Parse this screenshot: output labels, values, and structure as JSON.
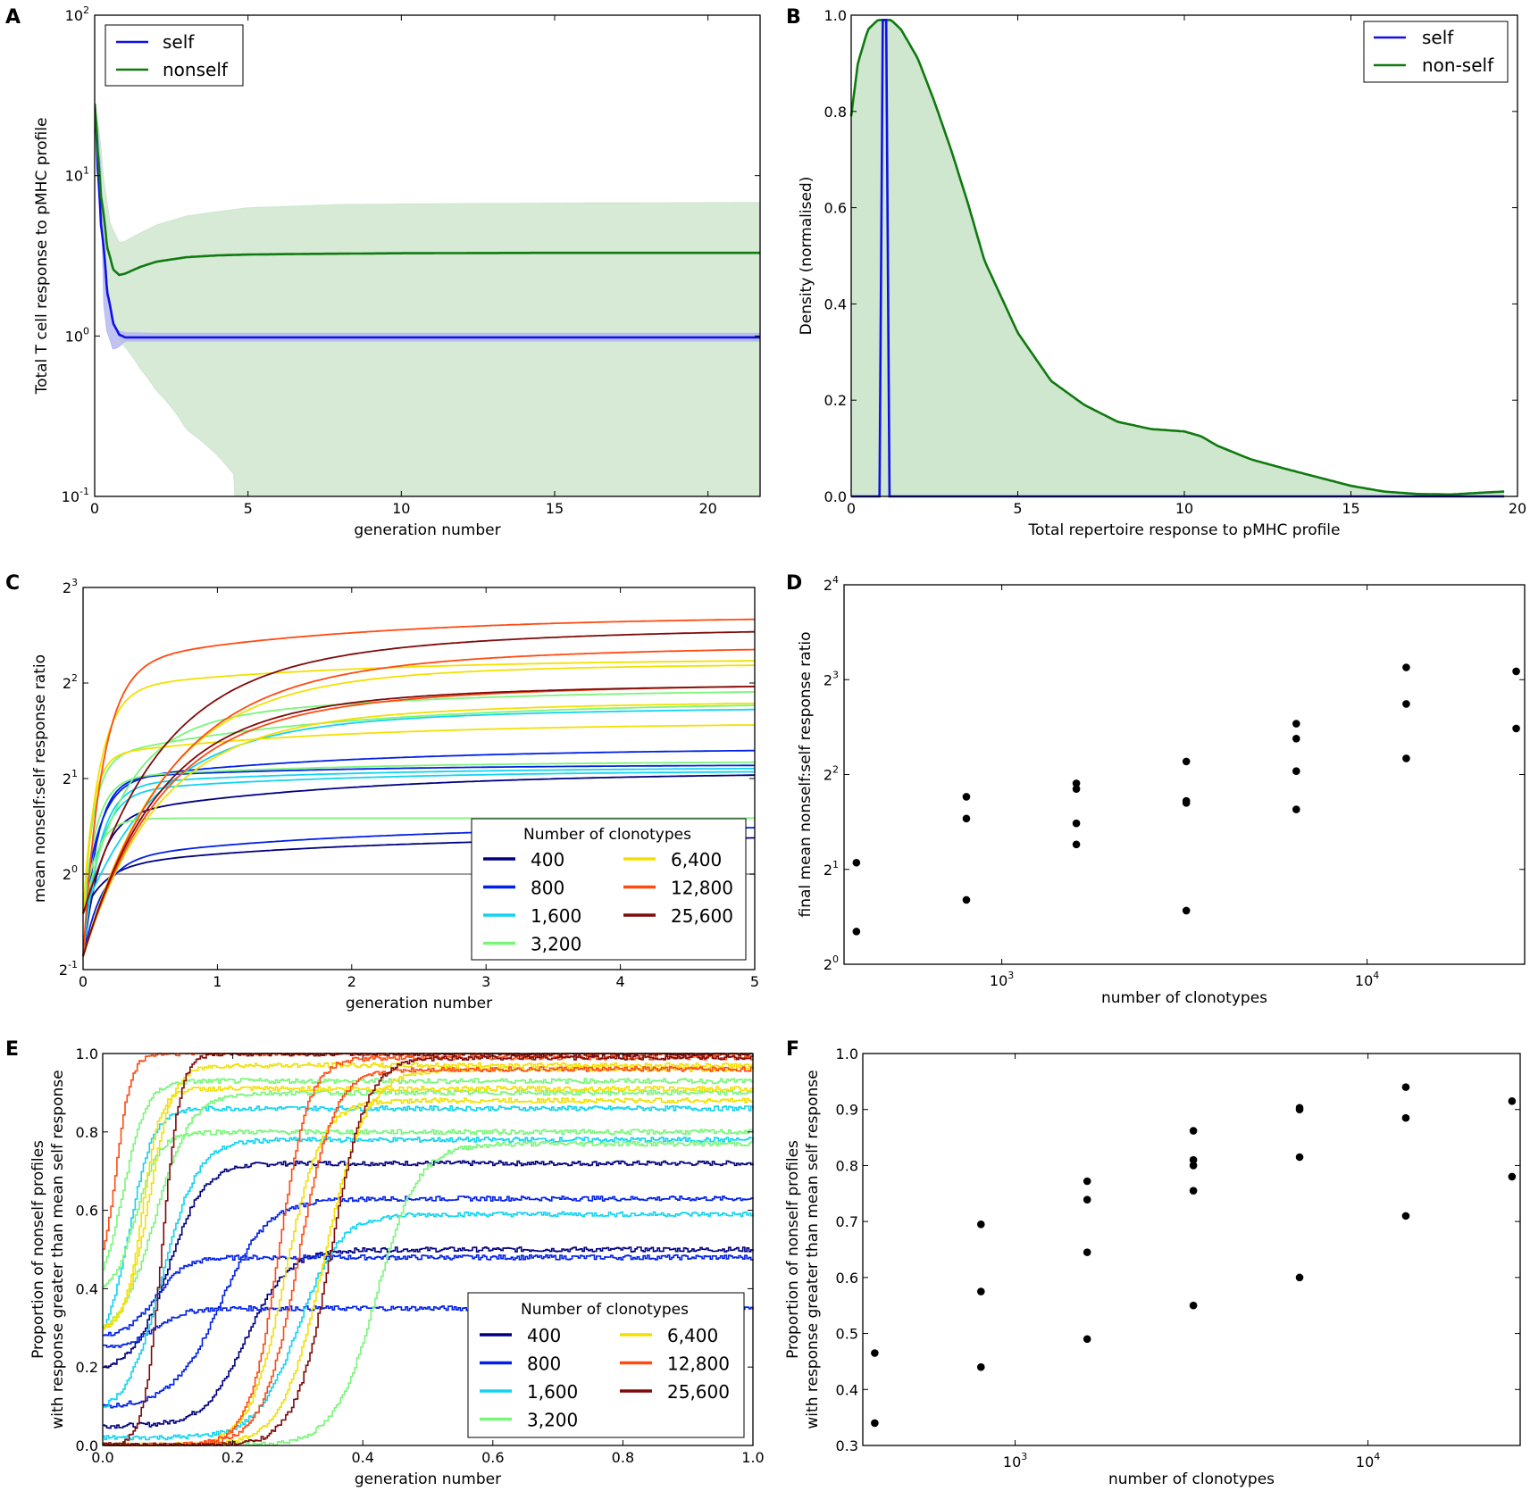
{
  "colors": {
    "self": "#1010e6",
    "nonself": "#0f7a0f",
    "nonself_band": "#cfe6cf",
    "self_band": "#b6b9f0",
    "c400": "#00007f",
    "c800": "#0020e6",
    "c1600": "#12d3f0",
    "c3200": "#7af57a",
    "c6400": "#f2e000",
    "c12800": "#ff4a10",
    "c25600": "#7f0a0a",
    "reference": "#808080",
    "point": "#000000"
  },
  "chart_data": [
    {
      "panel": "A",
      "type": "line",
      "yscale": "log10",
      "xlabel": "generation number",
      "ylabel": "Total T cell response to pMHC profile",
      "xlim": [
        0,
        21.7
      ],
      "ylim": [
        0.1,
        100
      ],
      "xticks": [
        0,
        5,
        10,
        15,
        20
      ],
      "yticks": [
        {
          "value": 0.1,
          "base": "10",
          "exp": "-1"
        },
        {
          "value": 1,
          "base": "10",
          "exp": "0"
        },
        {
          "value": 10,
          "base": "10",
          "exp": "1"
        },
        {
          "value": 100,
          "base": "10",
          "exp": "2"
        }
      ],
      "legend": {
        "position": "top-left",
        "entries": [
          "self",
          "nonself"
        ]
      },
      "series": [
        {
          "name": "self",
          "color_key": "self",
          "x": [
            0,
            0.1,
            0.2,
            0.4,
            0.6,
            0.8,
            1.0,
            1.5,
            2,
            3,
            5,
            10,
            15,
            21.7
          ],
          "y": [
            28,
            11,
            5,
            1.9,
            1.2,
            1.02,
            0.98,
            0.98,
            0.98,
            0.98,
            0.98,
            0.98,
            0.98,
            0.98
          ]
        },
        {
          "name": "nonself",
          "color_key": "nonself",
          "x": [
            0,
            0.1,
            0.2,
            0.4,
            0.6,
            0.8,
            1.0,
            1.5,
            2,
            3,
            4,
            5,
            7,
            10,
            15,
            21.7
          ],
          "y": [
            28,
            14,
            7.5,
            3.6,
            2.6,
            2.4,
            2.45,
            2.7,
            2.9,
            3.1,
            3.18,
            3.22,
            3.25,
            3.28,
            3.3,
            3.3
          ]
        }
      ],
      "bands": [
        {
          "name": "nonself",
          "color_key": "nonself_band",
          "x": [
            0,
            0.3,
            0.5,
            0.8,
            1.0,
            1.5,
            2,
            3,
            5,
            8,
            12,
            16,
            21.7
          ],
          "upper": [
            28,
            9,
            5,
            3.8,
            3.9,
            4.4,
            4.9,
            5.6,
            6.3,
            6.6,
            6.7,
            6.75,
            6.8
          ],
          "lower": [
            28,
            3,
            1.4,
            0.95,
            0.85,
            0.62,
            0.46,
            0.26,
            0.1,
            0.1,
            0.1,
            0.1,
            0.1
          ],
          "lower_end_x": 4.6
        },
        {
          "name": "self",
          "color_key": "self_band",
          "x": [
            0,
            0.3,
            0.6,
            0.8,
            1.0,
            2,
            5,
            21.7
          ],
          "upper": [
            28,
            2.5,
            1.15,
            1.07,
            1.05,
            1.04,
            1.04,
            1.04
          ],
          "lower": [
            28,
            1.2,
            0.82,
            0.86,
            0.93,
            0.93,
            0.93,
            0.93
          ]
        }
      ]
    },
    {
      "panel": "B",
      "type": "area",
      "xlabel": "Total repertoire response to pMHC profile",
      "ylabel": "Density (normalised)",
      "xlim": [
        0,
        20
      ],
      "ylim": [
        0,
        1.0
      ],
      "xticks": [
        0,
        5,
        10,
        15,
        20
      ],
      "yticks": [
        0.0,
        0.2,
        0.4,
        0.6,
        0.8,
        1.0
      ],
      "legend": {
        "position": "top-right",
        "entries": [
          "self",
          "non-self"
        ]
      },
      "series": [
        {
          "name": "non-self",
          "color_key": "nonself",
          "fill": true,
          "x": [
            0,
            0.2,
            0.5,
            0.8,
            1.0,
            1.2,
            1.5,
            2,
            2.5,
            3,
            3.5,
            4,
            5,
            6,
            7,
            8,
            9,
            10,
            10.5,
            11,
            12,
            13,
            14,
            15,
            16,
            17,
            18,
            19,
            19.6
          ],
          "y": [
            0.79,
            0.9,
            0.97,
            0.99,
            0.99,
            0.99,
            0.97,
            0.91,
            0.82,
            0.72,
            0.61,
            0.49,
            0.34,
            0.24,
            0.19,
            0.155,
            0.14,
            0.135,
            0.125,
            0.105,
            0.077,
            0.058,
            0.04,
            0.022,
            0.01,
            0.005,
            0.004,
            0.008,
            0.01
          ]
        },
        {
          "name": "self",
          "color_key": "self",
          "x": [
            0,
            0.85,
            0.95,
            1.05,
            1.15,
            19.6
          ],
          "y": [
            0,
            0,
            0.99,
            0.99,
            0,
            0
          ]
        }
      ]
    },
    {
      "panel": "C",
      "type": "line",
      "yscale": "log2",
      "xlabel": "generation number",
      "ylabel": "mean nonself:self response ratio",
      "xlim": [
        0,
        5
      ],
      "ylim": [
        0.5,
        8
      ],
      "xticks": [
        0,
        1,
        2,
        3,
        4,
        5
      ],
      "yticks": [
        {
          "value": 0.5,
          "base": "2",
          "exp": "-1"
        },
        {
          "value": 1,
          "base": "2",
          "exp": "0"
        },
        {
          "value": 2,
          "base": "2",
          "exp": "1"
        },
        {
          "value": 4,
          "base": "2",
          "exp": "2"
        },
        {
          "value": 8,
          "base": "2",
          "exp": "3"
        }
      ],
      "reference_y": 1,
      "legend": {
        "title": "Number of clonotypes",
        "position": "lower-right",
        "columns": [
          [
            "400",
            "800",
            "1,600",
            "3,200"
          ],
          [
            "6,400",
            "12,800",
            "25,600"
          ]
        ]
      },
      "series": [
        {
          "name": "400",
          "color_key": "c400",
          "start": 0.55,
          "plateau": 1.5,
          "tau": 0.12,
          "end": 2.05
        },
        {
          "name": "400",
          "color_key": "c400",
          "start": 0.75,
          "plateau": 1.05,
          "tau": 0.15,
          "end": 1.3
        },
        {
          "name": "800",
          "color_key": "c800",
          "start": 0.75,
          "plateau": 1.95,
          "tau": 0.12,
          "end": 2.45
        },
        {
          "name": "800",
          "color_key": "c800",
          "start": 0.55,
          "plateau": 1.1,
          "tau": 0.14,
          "end": 1.4
        },
        {
          "name": "800",
          "color_key": "c800",
          "start": 0.55,
          "plateau": 2.0,
          "tau": 0.1,
          "end": 2.2
        },
        {
          "name": "1,600",
          "color_key": "c1600",
          "start": 0.75,
          "plateau": 2.55,
          "tau": 0.5,
          "end": 3.3
        },
        {
          "name": "1,600",
          "color_key": "c1600",
          "start": 0.55,
          "plateau": 1.8,
          "tau": 0.12,
          "end": 2.1
        },
        {
          "name": "1,600",
          "color_key": "c1600",
          "start": 0.55,
          "plateau": 1.9,
          "tau": 0.12,
          "end": 2.15
        },
        {
          "name": "3,200",
          "color_key": "c3200",
          "start": 0.75,
          "plateau": 2.3,
          "tau": 0.08,
          "end": 3.4
        },
        {
          "name": "3,200",
          "color_key": "c3200",
          "start": 0.75,
          "plateau": 2.8,
          "tau": 0.3,
          "end": 3.75
        },
        {
          "name": "3,200",
          "color_key": "c3200",
          "start": 0.75,
          "plateau": 1.5,
          "tau": 0.1,
          "end": 1.5
        },
        {
          "name": "3,200",
          "color_key": "c3200",
          "start": 0.75,
          "plateau": 2.0,
          "tau": 0.1,
          "end": 2.25
        },
        {
          "name": "6,400",
          "color_key": "c6400",
          "start": 0.75,
          "plateau": 3.8,
          "tau": 0.12,
          "end": 4.7
        },
        {
          "name": "6,400",
          "color_key": "c6400",
          "start": 0.55,
          "plateau": 3.6,
          "tau": 0.55,
          "end": 4.55
        },
        {
          "name": "6,400",
          "color_key": "c6400",
          "start": 0.75,
          "plateau": 2.35,
          "tau": 0.07,
          "end": 2.95
        },
        {
          "name": "6,400",
          "color_key": "c6400",
          "start": 0.55,
          "plateau": 2.6,
          "tau": 0.5,
          "end": 3.45
        },
        {
          "name": "12,800",
          "color_key": "c12800",
          "start": 0.55,
          "plateau": 4.5,
          "tau": 0.14,
          "end": 6.35
        },
        {
          "name": "12,800",
          "color_key": "c12800",
          "start": 0.55,
          "plateau": 3.4,
          "tau": 0.55,
          "end": 5.1
        },
        {
          "name": "12,800",
          "color_key": "c12800",
          "start": 0.55,
          "plateau": 2.7,
          "tau": 0.5,
          "end": 3.9
        },
        {
          "name": "25,600",
          "color_key": "c25600",
          "start": 0.75,
          "plateau": 3.7,
          "tau": 0.5,
          "end": 5.8
        },
        {
          "name": "25,600",
          "color_key": "c25600",
          "start": 0.55,
          "plateau": 2.9,
          "tau": 0.5,
          "end": 3.9
        }
      ]
    },
    {
      "panel": "D",
      "type": "scatter",
      "xscale": "log10",
      "yscale": "log2",
      "xlabel": "number of clonotypes",
      "ylabel": "final mean nonself:self response ratio",
      "xlim": [
        370,
        27000
      ],
      "ylim": [
        1,
        16
      ],
      "xticks": [
        {
          "value": 1000,
          "base": "10",
          "exp": "3"
        },
        {
          "value": 10000,
          "base": "10",
          "exp": "4"
        }
      ],
      "yticks": [
        {
          "value": 1,
          "base": "2",
          "exp": "0"
        },
        {
          "value": 2,
          "base": "2",
          "exp": "1"
        },
        {
          "value": 4,
          "base": "2",
          "exp": "2"
        },
        {
          "value": 8,
          "base": "2",
          "exp": "3"
        },
        {
          "value": 16,
          "base": "2",
          "exp": "4"
        }
      ],
      "points": [
        [
          400,
          2.1
        ],
        [
          400,
          1.27
        ],
        [
          800,
          3.4
        ],
        [
          800,
          2.9
        ],
        [
          800,
          1.6
        ],
        [
          1600,
          3.75
        ],
        [
          1600,
          3.6
        ],
        [
          1600,
          2.8
        ],
        [
          1600,
          2.4
        ],
        [
          3200,
          4.4
        ],
        [
          3200,
          3.3
        ],
        [
          3200,
          3.25
        ],
        [
          3200,
          1.48
        ],
        [
          6400,
          5.8
        ],
        [
          6400,
          5.2
        ],
        [
          6400,
          4.1
        ],
        [
          6400,
          3.1
        ],
        [
          12800,
          8.75
        ],
        [
          12800,
          6.7
        ],
        [
          12800,
          4.5
        ],
        [
          25600,
          8.5
        ],
        [
          25600,
          5.6
        ]
      ]
    },
    {
      "panel": "E",
      "type": "line",
      "xlabel": "generation number",
      "ylabel": "Proportion of nonself profiles\nwith response greater than mean self response",
      "xlim": [
        0,
        1.0
      ],
      "ylim": [
        0,
        1.0
      ],
      "xticks": [
        0.0,
        0.2,
        0.4,
        0.6,
        0.8,
        1.0
      ],
      "yticks": [
        0.0,
        0.2,
        0.4,
        0.6,
        0.8,
        1.0
      ],
      "legend": {
        "title": "Number of clonotypes",
        "position": "lower-right",
        "columns": [
          [
            "400",
            "800",
            "1,600",
            "3,200"
          ],
          [
            "6,400",
            "12,800",
            "25,600"
          ]
        ]
      },
      "series": [
        {
          "name": "400",
          "color_key": "c400",
          "x0": 0.0,
          "y0": 0.2,
          "t50": 0.1,
          "w": 0.06,
          "plateau": 0.72
        },
        {
          "name": "400",
          "color_key": "c400",
          "x0": 0.0,
          "y0": 0.05,
          "t50": 0.22,
          "w": 0.07,
          "plateau": 0.5
        },
        {
          "name": "800",
          "color_key": "c800",
          "x0": 0.0,
          "y0": 0.28,
          "t50": 0.08,
          "w": 0.05,
          "plateau": 0.48
        },
        {
          "name": "800",
          "color_key": "c800",
          "x0": 0.0,
          "y0": 0.1,
          "t50": 0.18,
          "w": 0.08,
          "plateau": 0.63
        },
        {
          "name": "800",
          "color_key": "c800",
          "x0": 0.0,
          "y0": 0.25,
          "t50": 0.08,
          "w": 0.05,
          "plateau": 0.35
        },
        {
          "name": "1,600",
          "color_key": "c1600",
          "x0": 0.0,
          "y0": 0.3,
          "t50": 0.04,
          "w": 0.04,
          "plateau": 0.86
        },
        {
          "name": "1,600",
          "color_key": "c1600",
          "x0": 0.0,
          "y0": 0.1,
          "t50": 0.09,
          "w": 0.06,
          "plateau": 0.78
        },
        {
          "name": "1,600",
          "color_key": "c1600",
          "x0": 0.0,
          "y0": 0.02,
          "t50": 0.3,
          "w": 0.07,
          "plateau": 0.59
        },
        {
          "name": "3,200",
          "color_key": "c3200",
          "x0": 0.0,
          "y0": 0.45,
          "t50": 0.03,
          "w": 0.04,
          "plateau": 0.93
        },
        {
          "name": "3,200",
          "color_key": "c3200",
          "x0": 0.0,
          "y0": 0.4,
          "t50": 0.05,
          "w": 0.04,
          "plateau": 0.8
        },
        {
          "name": "3,200",
          "color_key": "c3200",
          "x0": 0.0,
          "y0": 0.3,
          "t50": 0.08,
          "w": 0.06,
          "plateau": 0.9
        },
        {
          "name": "3,200",
          "color_key": "c3200",
          "x0": 0.0,
          "y0": 0.0,
          "t50": 0.42,
          "w": 0.07,
          "plateau": 0.77
        },
        {
          "name": "6,400",
          "color_key": "c6400",
          "x0": 0.0,
          "y0": 0.3,
          "t50": 0.07,
          "w": 0.04,
          "plateau": 0.97
        },
        {
          "name": "6,400",
          "color_key": "c6400",
          "x0": 0.0,
          "y0": 0.0,
          "t50": 0.34,
          "w": 0.07,
          "plateau": 0.96
        },
        {
          "name": "6,400",
          "color_key": "c6400",
          "x0": 0.0,
          "y0": 0.3,
          "t50": 0.06,
          "w": 0.03,
          "plateau": 0.91
        },
        {
          "name": "6,400",
          "color_key": "c6400",
          "x0": 0.0,
          "y0": 0.0,
          "t50": 0.28,
          "w": 0.06,
          "plateau": 0.88
        },
        {
          "name": "12,800",
          "color_key": "c12800",
          "x0": 0.0,
          "y0": 0.5,
          "t50": 0.02,
          "w": 0.025,
          "plateau": 1.0
        },
        {
          "name": "12,800",
          "color_key": "c12800",
          "x0": 0.0,
          "y0": 0.0,
          "t50": 0.3,
          "w": 0.06,
          "plateau": 0.96
        },
        {
          "name": "12,800",
          "color_key": "c12800",
          "x0": 0.0,
          "y0": 0.0,
          "t50": 0.27,
          "w": 0.05,
          "plateau": 0.99
        },
        {
          "name": "25,600",
          "color_key": "c25600",
          "x0": 0.0,
          "y0": 0.0,
          "t50": 0.09,
          "w": 0.03,
          "plateau": 1.0
        },
        {
          "name": "25,600",
          "color_key": "c25600",
          "x0": 0.0,
          "y0": 0.0,
          "t50": 0.35,
          "w": 0.06,
          "plateau": 0.99
        }
      ]
    },
    {
      "panel": "F",
      "type": "scatter",
      "xscale": "log10",
      "xlabel": "number of clonotypes",
      "ylabel": "Proportion of nonself profiles\nwith response greater than mean self response",
      "xlim": [
        370,
        27000
      ],
      "ylim": [
        0.3,
        1.0
      ],
      "xticks": [
        {
          "value": 1000,
          "base": "10",
          "exp": "3"
        },
        {
          "value": 10000,
          "base": "10",
          "exp": "4"
        }
      ],
      "yticks": [
        0.3,
        0.4,
        0.5,
        0.6,
        0.7,
        0.8,
        0.9,
        1.0
      ],
      "points": [
        [
          400,
          0.465
        ],
        [
          400,
          0.34
        ],
        [
          800,
          0.695
        ],
        [
          800,
          0.575
        ],
        [
          800,
          0.44
        ],
        [
          1600,
          0.772
        ],
        [
          1600,
          0.739
        ],
        [
          1600,
          0.645
        ],
        [
          1600,
          0.49
        ],
        [
          3200,
          0.862
        ],
        [
          3200,
          0.81
        ],
        [
          3200,
          0.8
        ],
        [
          3200,
          0.755
        ],
        [
          3200,
          0.55
        ],
        [
          6400,
          0.903
        ],
        [
          6400,
          0.9
        ],
        [
          6400,
          0.815
        ],
        [
          6400,
          0.6
        ],
        [
          12800,
          0.94
        ],
        [
          12800,
          0.885
        ],
        [
          12800,
          0.71
        ],
        [
          25600,
          0.915
        ],
        [
          25600,
          0.78
        ]
      ]
    }
  ]
}
